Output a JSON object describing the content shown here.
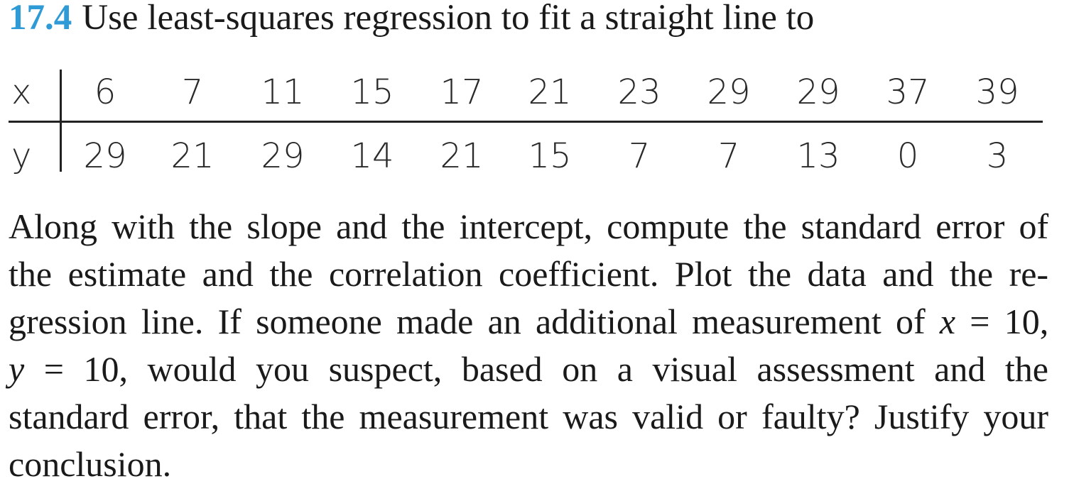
{
  "problem": {
    "number": "17.4",
    "prompt": "Use least-squares regression to fit a straight line to"
  },
  "table": {
    "x_label": "x",
    "y_label": "y",
    "x": [
      "6",
      "7",
      "11",
      "15",
      "17",
      "21",
      "23",
      "29",
      "29",
      "37",
      "39"
    ],
    "y": [
      "29",
      "21",
      "29",
      "14",
      "21",
      "15",
      "7",
      "7",
      "13",
      "0",
      "3"
    ]
  },
  "text": {
    "line1": "Along with the slope and the intercept, compute the standard error of",
    "line2": "the estimate and the correlation coefficient. Plot the data and the re-",
    "line3a": "gression line. If someone made an additional measurement of ",
    "line3_var": "x",
    "line3b": " = 10,",
    "line4_var": "y",
    "line4": " = 10, would you suspect, based on a visual assessment and the",
    "line5": "standard error, that the measurement was valid or faulty? Justify your",
    "line6": "conclusion."
  }
}
